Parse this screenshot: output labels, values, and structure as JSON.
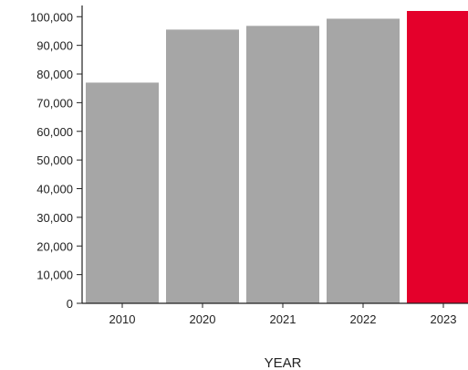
{
  "chart_data": {
    "type": "bar",
    "categories": [
      "2010",
      "2020",
      "2021",
      "2022",
      "2023"
    ],
    "values": [
      77000,
      95500,
      96800,
      99300,
      102000
    ],
    "title": "",
    "xlabel": "YEAR",
    "ylabel": "",
    "ylim": [
      0,
      102000
    ],
    "yticks": [
      0,
      10000,
      20000,
      30000,
      40000,
      50000,
      60000,
      70000,
      80000,
      90000,
      100000
    ],
    "ytick_labels": [
      "0",
      "10,000",
      "20,000",
      "30,000",
      "40,000",
      "50,000",
      "60,000",
      "70,000",
      "80,000",
      "90,000",
      "100,000"
    ],
    "grid": false,
    "legend": "none",
    "colors": {
      "bar": "#a6a6a6",
      "highlight": "#e4002b",
      "axis": "#222222"
    },
    "highlight_category": "2023"
  }
}
